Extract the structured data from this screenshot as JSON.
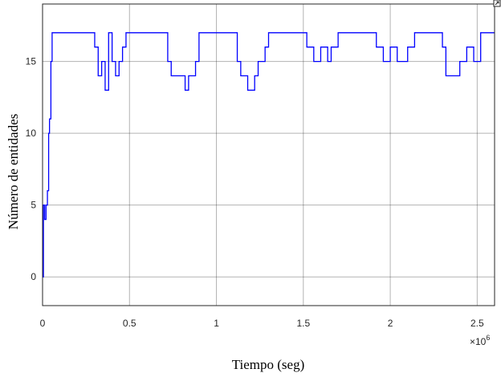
{
  "chart_data": {
    "type": "line",
    "title": "",
    "xlabel": "Tiempo (seg)",
    "ylabel": "Número de entidades",
    "x_exponent_label": "×10",
    "x_exponent_power": "6",
    "xlim": [
      0,
      2.6
    ],
    "ylim": [
      -2,
      19
    ],
    "x_ticks": [
      0,
      0.5,
      1,
      1.5,
      2,
      2.5
    ],
    "x_tick_labels": [
      "0",
      "0.5",
      "1",
      "1.5",
      "2",
      "2.5"
    ],
    "y_ticks": [
      0,
      5,
      10,
      15
    ],
    "y_tick_labels": [
      "0",
      "5",
      "10",
      "15"
    ],
    "grid": true,
    "colors": {
      "series": "#0000ff",
      "grid": "#262626",
      "axes": "#262626"
    },
    "series": [
      {
        "x": [
          0,
          0.005,
          0.012,
          0.02,
          0.028,
          0.035,
          0.04,
          0.048,
          0.055,
          0.065,
          0.3,
          0.32,
          0.34,
          0.36,
          0.38,
          0.4,
          0.42,
          0.44,
          0.46,
          0.48,
          0.7,
          0.72,
          0.74,
          0.78,
          0.82,
          0.84,
          0.88,
          0.9,
          1.1,
          1.12,
          1.14,
          1.18,
          1.22,
          1.24,
          1.28,
          1.3,
          1.5,
          1.52,
          1.56,
          1.6,
          1.64,
          1.66,
          1.7,
          1.9,
          1.92,
          1.96,
          2.0,
          2.04,
          2.1,
          2.14,
          2.18,
          2.3,
          2.32,
          2.36,
          2.4,
          2.44,
          2.48,
          2.52,
          2.6
        ],
        "y": [
          0,
          5,
          4,
          5,
          6,
          10,
          11,
          15,
          17,
          17,
          16,
          14,
          15,
          13,
          17,
          15,
          14,
          15,
          16,
          17,
          17,
          15,
          14,
          14,
          13,
          14,
          15,
          17,
          17,
          15,
          14,
          13,
          14,
          15,
          16,
          17,
          17,
          16,
          15,
          16,
          15,
          16,
          17,
          17,
          16,
          15,
          16,
          15,
          16,
          17,
          17,
          16,
          14,
          14,
          15,
          16,
          15,
          17,
          17
        ]
      }
    ]
  }
}
